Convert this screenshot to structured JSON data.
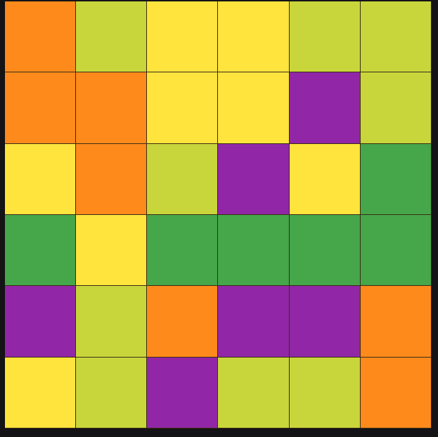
{
  "palette": {
    "O": "#fd8a1b",
    "L": "#c9d63b",
    "Y": "#fee43c",
    "P": "#9127a6",
    "G": "#46a64a"
  },
  "color_names": {
    "O": "orange",
    "L": "lime",
    "Y": "yellow",
    "P": "purple",
    "G": "green"
  },
  "grid": [
    [
      "O",
      "L",
      "Y",
      "Y",
      "L",
      "L"
    ],
    [
      "O",
      "O",
      "Y",
      "Y",
      "P",
      "L"
    ],
    [
      "Y",
      "O",
      "L",
      "P",
      "Y",
      "G"
    ],
    [
      "G",
      "Y",
      "G",
      "G",
      "G",
      "G"
    ],
    [
      "P",
      "L",
      "O",
      "P",
      "P",
      "O"
    ],
    [
      "Y",
      "L",
      "P",
      "L",
      "L",
      "O"
    ]
  ]
}
